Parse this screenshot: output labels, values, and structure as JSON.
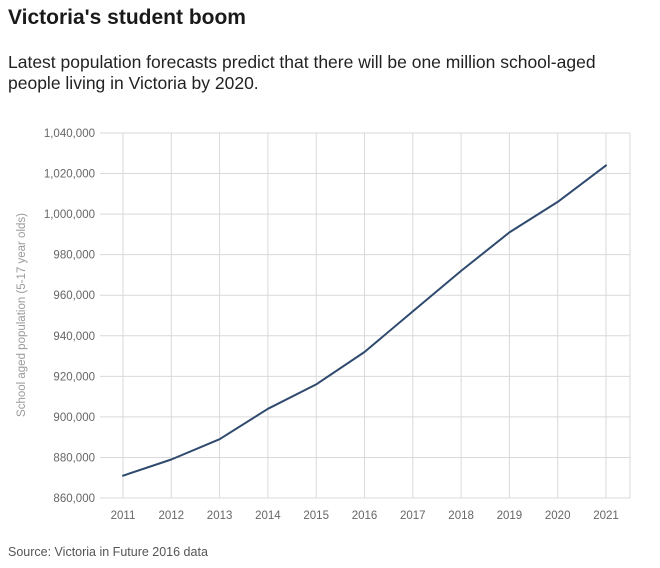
{
  "header": {
    "title": "Victoria's student boom",
    "subtitle": "Latest population forecasts predict that there will be one million school-aged people living in Victoria by 2020."
  },
  "footer": {
    "source": "Source: Victoria in Future 2016 data"
  },
  "colors": {
    "line": "#2f4a6e",
    "grid": "#d9d9d9",
    "tick_text": "#666666",
    "axis_title": "#999999"
  },
  "chart_data": {
    "type": "line",
    "title": "",
    "xlabel": "",
    "ylabel": "School aged population (5-17 year olds)",
    "x": [
      "2011",
      "2012",
      "2013",
      "2014",
      "2015",
      "2016",
      "2017",
      "2018",
      "2019",
      "2020",
      "2021"
    ],
    "series": [
      {
        "values": [
          871000,
          879000,
          889000,
          904000,
          916000,
          932000,
          952000,
          972000,
          991000,
          1006000,
          1024000
        ]
      }
    ],
    "ylim": [
      860000,
      1040000
    ],
    "yticks": [
      860000,
      880000,
      900000,
      920000,
      940000,
      960000,
      980000,
      1000000,
      1020000,
      1040000
    ],
    "ytick_labels": [
      "860,000",
      "880,000",
      "900,000",
      "920,000",
      "940,000",
      "960,000",
      "980,000",
      "1,000,000",
      "1,020,000",
      "1,040,000"
    ],
    "grid": true,
    "legend": "none"
  }
}
